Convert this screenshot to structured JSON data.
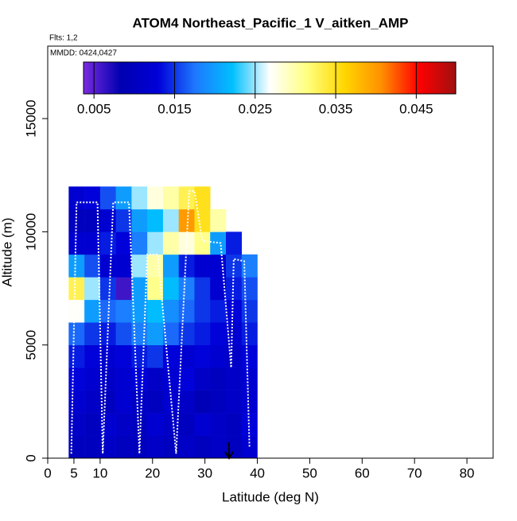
{
  "chart_data": {
    "type": "heatmap",
    "title": "ATOM4 Northeast_Pacific_1 V_aitken_AMP",
    "annotations": [
      "Flts: 1,2",
      "MMDD: 0424,0427"
    ],
    "xlabel": "Latitude (deg N)",
    "ylabel": "Altitude (m)",
    "xlim": [
      0,
      85
    ],
    "xticks": [
      0,
      5,
      10,
      20,
      30,
      40,
      50,
      60,
      70,
      80
    ],
    "ylim": [
      0,
      18200
    ],
    "yticks": [
      0,
      5000,
      10000,
      15000
    ],
    "x_bins": [
      4,
      7,
      10,
      13,
      16,
      19,
      22,
      25,
      28,
      31,
      34,
      37,
      40
    ],
    "y_bins": [
      0,
      1000,
      2000,
      3000,
      4000,
      5000,
      6000,
      7000,
      8000,
      9000,
      10000,
      11000,
      12000
    ],
    "z": [
      [
        0.01,
        0.01,
        0.011,
        0.01,
        0.01,
        0.011,
        0.01,
        0.011,
        0.01,
        0.011,
        0.01,
        0.012
      ],
      [
        0.011,
        0.01,
        0.012,
        0.011,
        0.01,
        0.012,
        0.011,
        0.01,
        0.012,
        0.011,
        0.01,
        0.013
      ],
      [
        0.012,
        0.011,
        0.01,
        0.012,
        0.011,
        0.01,
        0.012,
        0.011,
        0.009,
        0.01,
        0.011,
        0.012
      ],
      [
        0.013,
        0.012,
        0.011,
        0.012,
        0.013,
        0.011,
        0.012,
        0.013,
        0.011,
        0.01,
        0.011,
        0.012
      ],
      [
        0.014,
        0.013,
        0.012,
        0.013,
        0.014,
        0.015,
        0.013,
        0.012,
        0.013,
        0.012,
        0.011,
        0.013
      ],
      [
        0.017,
        0.015,
        0.014,
        0.016,
        0.018,
        0.02,
        0.017,
        0.015,
        0.014,
        0.013,
        0.012,
        0.014
      ],
      [
        0.027,
        0.02,
        0.017,
        0.018,
        0.02,
        0.022,
        0.019,
        0.017,
        0.015,
        0.014,
        0.013,
        0.015
      ],
      [
        0.033,
        0.025,
        0.015,
        0.006,
        0.02,
        0.031,
        0.022,
        0.018,
        0.015,
        0.012,
        0.014,
        0.016
      ],
      [
        0.02,
        0.016,
        0.012,
        0.012,
        0.025,
        0.03,
        0.02,
        0.014,
        0.012,
        0.012,
        0.015,
        0.018
      ],
      [
        0.012,
        0.012,
        0.014,
        0.013,
        0.018,
        0.025,
        0.03,
        0.028,
        0.031,
        0.02,
        0.014,
        null
      ],
      [
        0.01,
        0.01,
        0.012,
        0.015,
        0.02,
        0.022,
        0.025,
        0.04,
        0.035,
        0.03,
        null,
        null
      ],
      [
        0.012,
        0.013,
        0.016,
        0.02,
        0.025,
        0.028,
        0.03,
        0.033,
        0.035,
        null,
        null,
        null
      ]
    ],
    "clim": [
      0.0037,
      0.0499
    ],
    "colorbar_ticks": [
      0.005,
      0.015,
      0.025,
      0.035,
      0.045
    ],
    "colors": [
      "#7b2be0",
      "#0000b0",
      "#0000d8",
      "#1e78ff",
      "#00bfff",
      "#ffffff",
      "#ffff80",
      "#ffd700",
      "#ff9000",
      "#ff0000",
      "#a01010"
    ],
    "track": {
      "color": "#ffffff",
      "x": [
        4.5,
        5.5,
        9.5,
        10.5,
        12.5,
        15.5,
        17.5,
        19,
        21,
        24.5,
        27,
        28,
        29.5,
        33,
        35,
        35.5,
        37.5,
        38.5
      ],
      "y": [
        200,
        11300,
        11300,
        200,
        11300,
        11300,
        200,
        9000,
        9000,
        200,
        11800,
        11800,
        9600,
        9500,
        4000,
        8800,
        8700,
        500
      ]
    }
  }
}
